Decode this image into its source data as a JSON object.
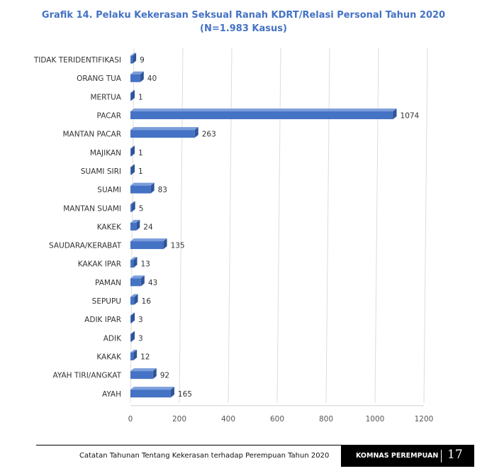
{
  "chart_data": {
    "type": "bar",
    "orientation": "horizontal",
    "title": "Grafik 14. Pelaku Kekerasan Seksual Ranah KDRT/Relasi Personal Tahun 2020",
    "subtitle": "(N=1.983 Kasus)",
    "categories": [
      "TIDAK TERIDENTIFIKASI",
      "ORANG TUA",
      "MERTUA",
      "PACAR",
      "MANTAN PACAR",
      "MAJIKAN",
      "SUAMI SIRI",
      "SUAMI",
      "MANTAN SUAMI",
      "KAKEK",
      "SAUDARA/KERABAT",
      "KAKAK IPAR",
      "PAMAN",
      "SEPUPU",
      "ADIK IPAR",
      "ADIK",
      "KAKAK",
      "AYAH TIRI/ANGKAT",
      "AYAH"
    ],
    "values": [
      9,
      40,
      1,
      1074,
      263,
      1,
      1,
      83,
      5,
      24,
      135,
      13,
      43,
      16,
      3,
      3,
      12,
      92,
      165
    ],
    "xlim": [
      0,
      1200
    ],
    "xticks": [
      "0",
      "200",
      "400",
      "600",
      "800",
      "1000",
      "1200"
    ],
    "grid": true,
    "bar_color": "#4472c4",
    "title_color": "#4472c4"
  },
  "footer": {
    "text": "Catatan Tahunan Tentang Kekerasan terhadap Perempuan Tahun 2020",
    "brand": "KOMNAS PEREMPUAN",
    "page": "17"
  }
}
